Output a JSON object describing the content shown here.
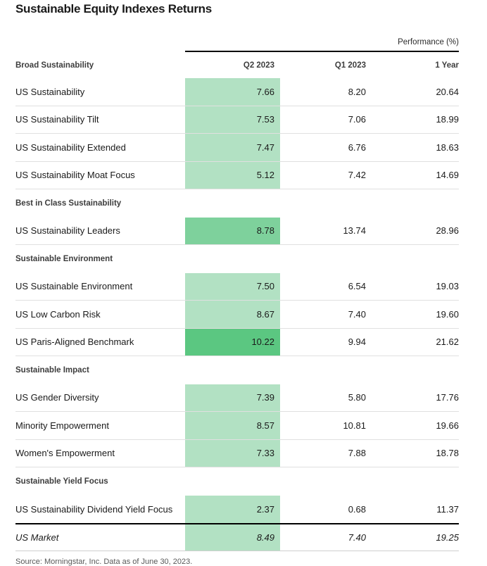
{
  "title": "Sustainable Equity Indexes Returns",
  "performance_label": "Performance (%)",
  "source": "Source: Morningstar, Inc. Data as of June 30, 2023.",
  "colors": {
    "light": "#b2e1c3",
    "medium": "#7ed19c",
    "dark": "#5bc781",
    "rule": "#000000",
    "separator": "#e0e0e0"
  },
  "chart_data": {
    "type": "table",
    "title": "Sustainable Equity Indexes Returns",
    "unit_label": "Performance (%)",
    "columns": [
      "Q2 2023",
      "Q1 2023",
      "1 Year"
    ],
    "heatmap_column": "Q2 2023",
    "sections": [
      {
        "header": "Broad Sustainability",
        "rows": [
          {
            "label": "US Sustainability",
            "values": [
              "7.66",
              "8.20",
              "20.64"
            ],
            "shade": "light"
          },
          {
            "label": "US Sustainability Tilt",
            "values": [
              "7.53",
              "7.06",
              "18.99"
            ],
            "shade": "light"
          },
          {
            "label": "US Sustainability Extended",
            "values": [
              "7.47",
              "6.76",
              "18.63"
            ],
            "shade": "light"
          },
          {
            "label": "US Sustainability Moat Focus",
            "values": [
              "5.12",
              "7.42",
              "14.69"
            ],
            "shade": "light"
          }
        ]
      },
      {
        "header": "Best in Class Sustainability",
        "rows": [
          {
            "label": "US Sustainability Leaders",
            "values": [
              "8.78",
              "13.74",
              "28.96"
            ],
            "shade": "medium"
          }
        ]
      },
      {
        "header": "Sustainable Environment",
        "rows": [
          {
            "label": "US Sustainable Environment",
            "values": [
              "7.50",
              "6.54",
              "19.03"
            ],
            "shade": "light"
          },
          {
            "label": "US Low Carbon Risk",
            "values": [
              "8.67",
              "7.40",
              "19.60"
            ],
            "shade": "light"
          },
          {
            "label": "US Paris-Aligned Benchmark",
            "values": [
              "10.22",
              "9.94",
              "21.62"
            ],
            "shade": "dark"
          }
        ]
      },
      {
        "header": "Sustainable Impact",
        "rows": [
          {
            "label": "US Gender Diversity",
            "values": [
              "7.39",
              "5.80",
              "17.76"
            ],
            "shade": "light"
          },
          {
            "label": "Minority Empowerment",
            "values": [
              "8.57",
              "10.81",
              "19.66"
            ],
            "shade": "light"
          },
          {
            "label": "Women's Empowerment",
            "values": [
              "7.33",
              "7.88",
              "18.78"
            ],
            "shade": "light"
          }
        ]
      },
      {
        "header": "Sustainable Yield Focus",
        "rows": [
          {
            "label": "US Sustainability Dividend Yield Focus",
            "values": [
              "2.37",
              "0.68",
              "11.37"
            ],
            "shade": "light"
          }
        ]
      }
    ],
    "benchmark_row": {
      "label": "US Market",
      "values": [
        "8.49",
        "7.40",
        "19.25"
      ],
      "shade": "light",
      "italic": true
    }
  }
}
